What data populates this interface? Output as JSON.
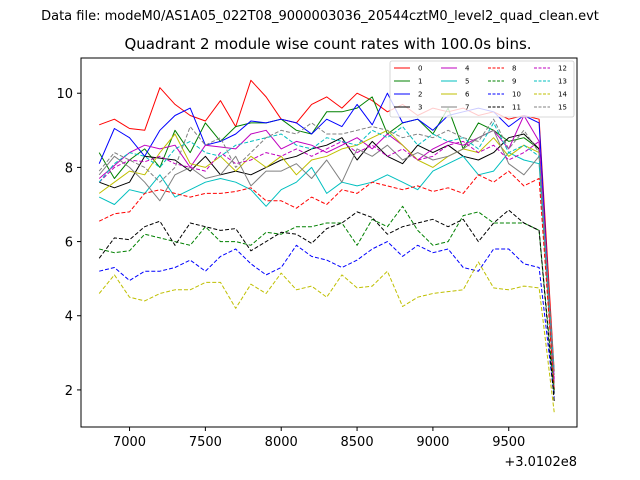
{
  "page": {
    "suptitle": "Data file: modeM0/AS1A05_022T08_9000003036_20544cztM0_level2_quad_clean.evt",
    "title": "Quadrant 2 module wise count rates with 100.0s bins.",
    "x_offset_label": "+3.0102e8"
  },
  "chart_data": {
    "type": "line",
    "title": "Quadrant 2 module wise count rates with 100.0s bins.",
    "xlabel": "",
    "ylabel": "",
    "x_offset": "+3.0102e8",
    "xlim": [
      6680,
      9950
    ],
    "ylim": [
      1.0,
      10.95
    ],
    "xticks": [
      7000,
      7500,
      8000,
      8500,
      9000,
      9500
    ],
    "yticks": [
      2,
      4,
      6,
      8,
      10
    ],
    "grid": false,
    "legend_position": "top-right",
    "legend_columns": 4,
    "x": [
      6800,
      6900,
      7000,
      7100,
      7200,
      7300,
      7400,
      7500,
      7600,
      7700,
      7800,
      7900,
      8000,
      8100,
      8200,
      8300,
      8400,
      8500,
      8600,
      8700,
      8800,
      8900,
      9000,
      9100,
      9200,
      9300,
      9400,
      9500,
      9600,
      9700,
      9800
    ],
    "series": [
      {
        "name": "0",
        "color": "#ff0000",
        "dash": "solid",
        "values": [
          9.15,
          9.3,
          9.05,
          9.0,
          10.15,
          9.7,
          9.4,
          9.25,
          9.8,
          9.1,
          10.35,
          9.9,
          9.3,
          9.2,
          9.7,
          9.9,
          9.6,
          10.0,
          9.8,
          9.5,
          9.7,
          9.4,
          9.6,
          9.5,
          9.6,
          9.4,
          9.5,
          9.3,
          9.4,
          9.3,
          2.5
        ]
      },
      {
        "name": "1",
        "color": "#008000",
        "dash": "solid",
        "values": [
          8.4,
          7.7,
          8.2,
          8.5,
          8.0,
          9.0,
          8.4,
          9.2,
          8.7,
          9.1,
          9.2,
          9.2,
          9.3,
          9.0,
          8.9,
          9.5,
          9.5,
          9.6,
          9.9,
          8.9,
          9.2,
          9.3,
          8.9,
          9.6,
          8.5,
          9.2,
          9.0,
          8.7,
          8.8,
          8.5,
          2.0
        ]
      },
      {
        "name": "2",
        "color": "#0000ff",
        "dash": "solid",
        "values": [
          8.1,
          9.05,
          8.8,
          8.3,
          9.0,
          9.4,
          9.6,
          8.6,
          8.7,
          8.9,
          9.25,
          9.2,
          9.3,
          9.2,
          8.9,
          9.3,
          9.1,
          9.7,
          9.15,
          10.0,
          9.2,
          9.3,
          9.0,
          9.4,
          9.5,
          9.6,
          9.5,
          9.1,
          9.4,
          9.2,
          2.0
        ]
      },
      {
        "name": "3",
        "color": "#000000",
        "dash": "solid",
        "values": [
          7.6,
          7.45,
          7.6,
          8.3,
          8.25,
          8.2,
          7.9,
          8.3,
          7.8,
          7.9,
          7.8,
          8.0,
          8.2,
          8.3,
          8.5,
          8.6,
          8.8,
          8.2,
          8.7,
          8.3,
          8.1,
          8.6,
          8.4,
          8.6,
          8.3,
          8.2,
          8.4,
          8.8,
          8.9,
          8.5,
          1.9
        ]
      },
      {
        "name": "4",
        "color": "#bf00bf",
        "dash": "solid",
        "values": [
          7.7,
          8.05,
          8.4,
          8.6,
          8.5,
          8.6,
          8.0,
          8.6,
          8.55,
          8.5,
          8.9,
          9.0,
          8.5,
          8.7,
          8.6,
          8.4,
          8.6,
          8.8,
          8.5,
          8.9,
          8.6,
          8.2,
          8.5,
          8.7,
          8.6,
          8.8,
          9.0,
          8.5,
          9.4,
          8.7,
          2.2
        ]
      },
      {
        "name": "5",
        "color": "#00bfbf",
        "dash": "solid",
        "values": [
          7.2,
          7.0,
          7.4,
          7.3,
          7.8,
          7.2,
          7.4,
          7.6,
          7.7,
          7.6,
          7.4,
          6.95,
          7.4,
          7.6,
          8.0,
          7.3,
          7.6,
          7.5,
          7.6,
          7.8,
          7.6,
          7.4,
          7.9,
          8.1,
          8.3,
          7.8,
          7.9,
          8.4,
          8.2,
          8.1,
          2.0
        ]
      },
      {
        "name": "6",
        "color": "#bfbf00",
        "dash": "solid",
        "values": [
          7.3,
          7.6,
          7.9,
          7.8,
          8.4,
          8.9,
          8.1,
          8.0,
          8.3,
          7.9,
          8.3,
          8.0,
          8.3,
          7.8,
          8.2,
          8.3,
          8.5,
          8.6,
          8.8,
          9.0,
          8.6,
          8.2,
          8.0,
          8.3,
          8.5,
          8.4,
          8.8,
          8.3,
          8.6,
          8.4,
          2.0
        ]
      },
      {
        "name": "7",
        "color": "#808080",
        "dash": "solid",
        "values": [
          7.8,
          8.3,
          8.0,
          7.6,
          7.1,
          7.8,
          8.0,
          7.7,
          7.8,
          8.3,
          7.5,
          7.9,
          7.9,
          8.1,
          7.7,
          8.2,
          7.6,
          8.5,
          8.3,
          8.6,
          8.2,
          8.4,
          8.2,
          8.3,
          8.5,
          8.8,
          9.0,
          8.1,
          7.8,
          8.3,
          2.0
        ]
      },
      {
        "name": "8",
        "color": "#ff0000",
        "dash": "dashed",
        "values": [
          6.55,
          6.75,
          6.8,
          7.3,
          7.4,
          7.3,
          7.2,
          7.3,
          7.3,
          7.35,
          7.45,
          7.1,
          7.1,
          6.9,
          7.2,
          7.0,
          7.4,
          7.3,
          7.6,
          7.5,
          7.4,
          7.5,
          7.35,
          7.45,
          7.3,
          7.8,
          7.6,
          7.9,
          7.5,
          7.7,
          2.0
        ]
      },
      {
        "name": "9",
        "color": "#008000",
        "dash": "dashed",
        "values": [
          5.8,
          5.7,
          5.75,
          6.2,
          6.1,
          6.0,
          5.9,
          6.4,
          6.0,
          6.0,
          5.9,
          6.25,
          6.2,
          6.4,
          6.4,
          6.5,
          6.5,
          5.9,
          6.6,
          6.4,
          6.95,
          6.3,
          5.9,
          6.0,
          6.7,
          6.8,
          6.5,
          6.5,
          6.5,
          6.3,
          1.9
        ]
      },
      {
        "name": "10",
        "color": "#0000ff",
        "dash": "dashed",
        "values": [
          5.2,
          5.3,
          4.95,
          5.2,
          5.2,
          5.3,
          5.5,
          5.2,
          5.6,
          5.8,
          5.4,
          5.1,
          5.3,
          5.9,
          5.6,
          5.5,
          5.3,
          5.5,
          5.8,
          6.0,
          5.6,
          5.9,
          5.7,
          5.8,
          5.3,
          5.2,
          5.8,
          5.8,
          5.4,
          5.3,
          1.8
        ]
      },
      {
        "name": "11",
        "color": "#000000",
        "dash": "dashed",
        "values": [
          5.55,
          6.1,
          6.05,
          6.4,
          6.55,
          5.9,
          6.5,
          6.4,
          6.3,
          6.35,
          5.75,
          6.0,
          6.25,
          6.2,
          5.95,
          6.35,
          6.5,
          6.8,
          6.65,
          6.2,
          6.4,
          6.5,
          6.6,
          6.4,
          6.6,
          6.0,
          6.5,
          6.85,
          6.5,
          6.3,
          1.7
        ]
      },
      {
        "name": "12",
        "color": "#bf00bf",
        "dash": "dashed",
        "values": [
          7.6,
          8.0,
          8.2,
          8.15,
          8.3,
          8.1,
          8.0,
          7.9,
          8.4,
          8.1,
          8.2,
          8.4,
          8.3,
          8.5,
          8.3,
          8.5,
          8.7,
          8.4,
          8.6,
          8.3,
          8.5,
          8.2,
          8.3,
          8.6,
          8.7,
          8.4,
          8.6,
          8.2,
          8.4,
          8.7,
          2.3
        ]
      },
      {
        "name": "13",
        "color": "#00bfbf",
        "dash": "dashed",
        "values": [
          7.6,
          8.1,
          8.4,
          8.3,
          8.0,
          8.5,
          8.7,
          8.4,
          8.3,
          8.6,
          8.7,
          8.8,
          8.9,
          8.6,
          8.5,
          8.8,
          8.7,
          8.6,
          9.0,
          8.8,
          9.1,
          8.6,
          8.9,
          8.7,
          8.8,
          8.5,
          9.2,
          8.4,
          8.6,
          8.3,
          2.5
        ]
      },
      {
        "name": "14",
        "color": "#bfbf00",
        "dash": "dashed",
        "values": [
          4.6,
          5.1,
          4.5,
          4.4,
          4.6,
          4.7,
          4.7,
          4.9,
          4.9,
          4.2,
          4.85,
          4.6,
          5.15,
          4.7,
          4.8,
          4.5,
          5.1,
          4.75,
          4.8,
          5.2,
          4.25,
          4.5,
          4.6,
          4.65,
          4.7,
          5.45,
          4.75,
          4.7,
          4.8,
          4.75,
          1.4
        ]
      },
      {
        "name": "15",
        "color": "#808080",
        "dash": "dashed",
        "values": [
          7.9,
          8.4,
          8.2,
          8.0,
          7.6,
          8.0,
          9.1,
          8.6,
          8.8,
          8.0,
          8.4,
          8.8,
          9.0,
          8.9,
          9.2,
          8.9,
          8.9,
          9.0,
          9.1,
          9.0,
          8.8,
          8.9,
          8.8,
          9.0,
          8.8,
          8.7,
          9.3,
          8.5,
          9.0,
          8.4,
          2.4
        ]
      }
    ],
    "legend_extra_colors": {
      "0_overlay": "#ff8080",
      "1_overlay": "#40a040"
    }
  }
}
